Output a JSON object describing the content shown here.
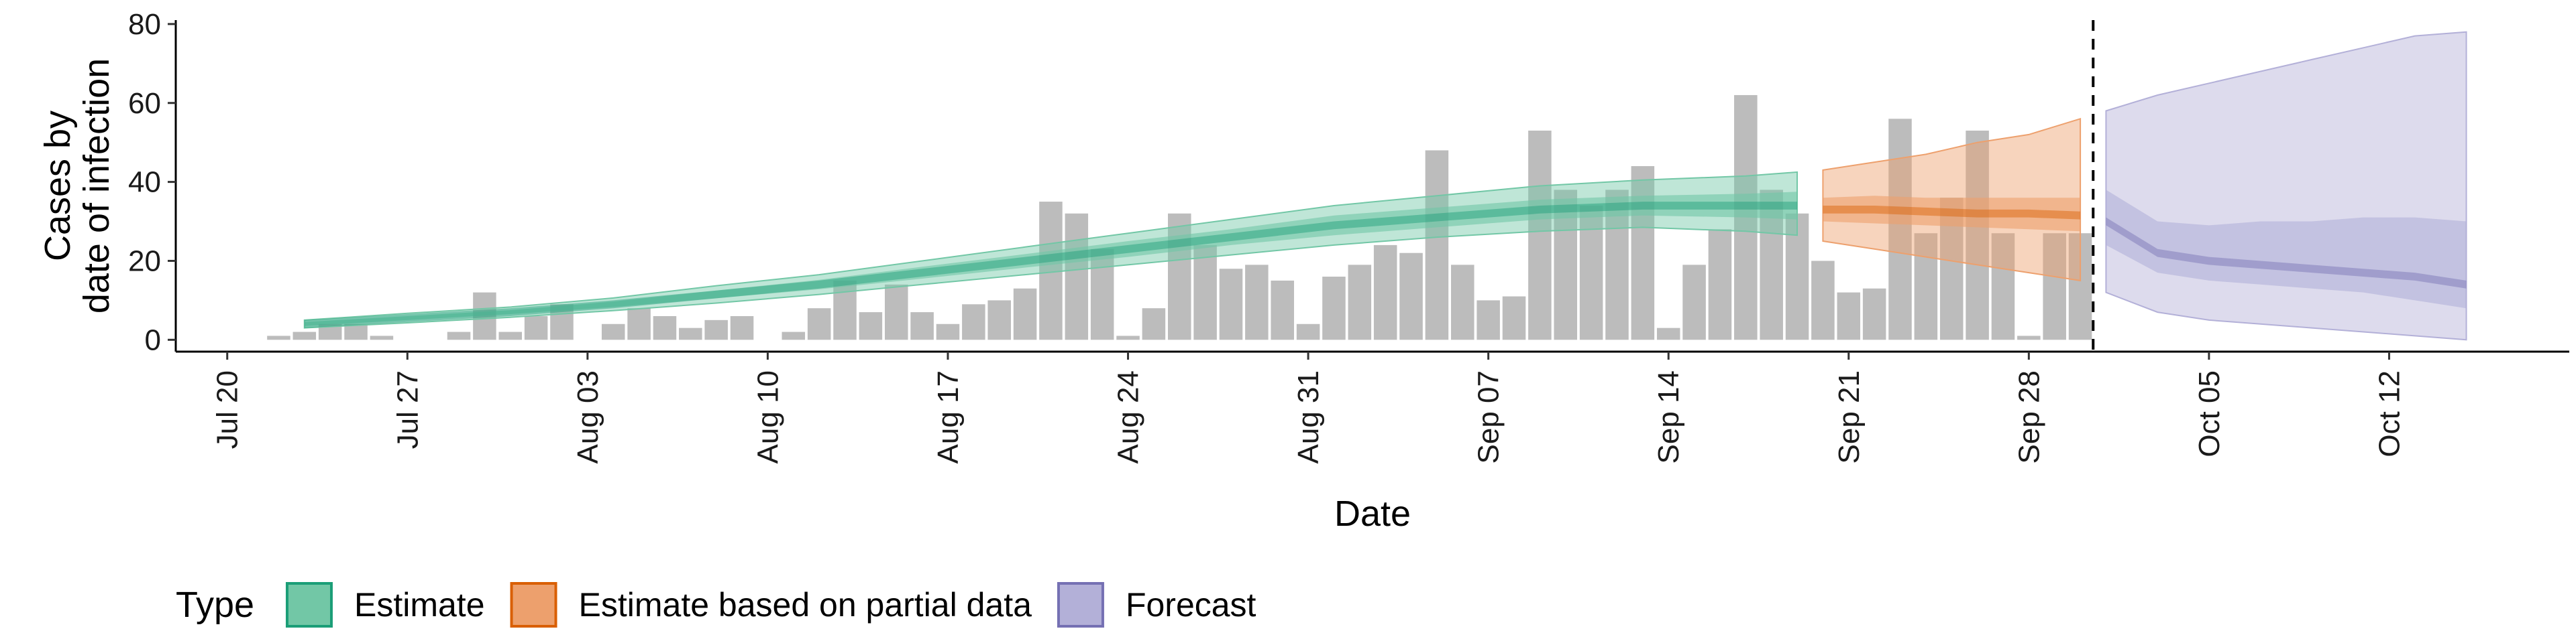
{
  "chart_data": {
    "type": "bar",
    "xlabel": "Date",
    "ylabel_lines": [
      "Cases by",
      "date of infection"
    ],
    "xlim": [
      "2020-07-18",
      "2020-10-19"
    ],
    "ylim": [
      -3,
      81
    ],
    "y_ticks": [
      0,
      20,
      40,
      60,
      80
    ],
    "x_ticks": [
      {
        "date": "2020-07-20",
        "label": "Jul 20"
      },
      {
        "date": "2020-07-27",
        "label": "Jul 27"
      },
      {
        "date": "2020-08-03",
        "label": "Aug 03"
      },
      {
        "date": "2020-08-10",
        "label": "Aug 10"
      },
      {
        "date": "2020-08-17",
        "label": "Aug 17"
      },
      {
        "date": "2020-08-24",
        "label": "Aug 24"
      },
      {
        "date": "2020-08-31",
        "label": "Aug 31"
      },
      {
        "date": "2020-09-07",
        "label": "Sep 07"
      },
      {
        "date": "2020-09-14",
        "label": "Sep 14"
      },
      {
        "date": "2020-09-21",
        "label": "Sep 21"
      },
      {
        "date": "2020-09-28",
        "label": "Sep 28"
      },
      {
        "date": "2020-10-05",
        "label": "Oct 05"
      },
      {
        "date": "2020-10-12",
        "label": "Oct 12"
      }
    ],
    "bars": {
      "color": "#a6a6a6",
      "dates": [
        "2020-07-22",
        "2020-07-23",
        "2020-07-24",
        "2020-07-25",
        "2020-07-26",
        "2020-07-27",
        "2020-07-28",
        "2020-07-29",
        "2020-07-30",
        "2020-07-31",
        "2020-08-01",
        "2020-08-02",
        "2020-08-03",
        "2020-08-04",
        "2020-08-05",
        "2020-08-06",
        "2020-08-07",
        "2020-08-08",
        "2020-08-09",
        "2020-08-10",
        "2020-08-11",
        "2020-08-12",
        "2020-08-13",
        "2020-08-14",
        "2020-08-15",
        "2020-08-16",
        "2020-08-17",
        "2020-08-18",
        "2020-08-19",
        "2020-08-20",
        "2020-08-21",
        "2020-08-22",
        "2020-08-23",
        "2020-08-24",
        "2020-08-25",
        "2020-08-26",
        "2020-08-27",
        "2020-08-28",
        "2020-08-29",
        "2020-08-30",
        "2020-08-31",
        "2020-09-01",
        "2020-09-02",
        "2020-09-03",
        "2020-09-04",
        "2020-09-05",
        "2020-09-06",
        "2020-09-07",
        "2020-09-08",
        "2020-09-09",
        "2020-09-10",
        "2020-09-11",
        "2020-09-12",
        "2020-09-13",
        "2020-09-14",
        "2020-09-15",
        "2020-09-16",
        "2020-09-17",
        "2020-09-18",
        "2020-09-19",
        "2020-09-20",
        "2020-09-21",
        "2020-09-22",
        "2020-09-23",
        "2020-09-24",
        "2020-09-25",
        "2020-09-26",
        "2020-09-27",
        "2020-09-28",
        "2020-09-29",
        "2020-09-30"
      ],
      "values": [
        1,
        2,
        4,
        4,
        1,
        0,
        0,
        2,
        12,
        2,
        6,
        9,
        0,
        4,
        8,
        6,
        3,
        5,
        6,
        0,
        2,
        8,
        15,
        7,
        14,
        7,
        4,
        9,
        10,
        13,
        35,
        32,
        23,
        1,
        8,
        32,
        24,
        18,
        19,
        15,
        4,
        16,
        19,
        24,
        22,
        48,
        19,
        10,
        11,
        53,
        38,
        34,
        38,
        44,
        3,
        19,
        28,
        62,
        38,
        32,
        20,
        12,
        13,
        56,
        27,
        36,
        53,
        27,
        1,
        27,
        27
      ]
    },
    "series": [
      {
        "name": "Estimate",
        "color": "#1b9e77",
        "fill": "#72c7a6",
        "dates": [
          "2020-07-23",
          "2020-07-27",
          "2020-07-31",
          "2020-08-04",
          "2020-08-08",
          "2020-08-12",
          "2020-08-16",
          "2020-08-20",
          "2020-08-24",
          "2020-08-28",
          "2020-09-01",
          "2020-09-05",
          "2020-09-09",
          "2020-09-13",
          "2020-09-17",
          "2020-09-19"
        ],
        "median": [
          4,
          5.5,
          7,
          9,
          11.5,
          14,
          17,
          20,
          23,
          26,
          29,
          31,
          33,
          34,
          34,
          34
        ],
        "inner_lower": [
          3.5,
          5,
          6.5,
          8.3,
          10.5,
          12.8,
          15.5,
          18.3,
          21,
          24,
          26.5,
          28.5,
          30.5,
          31.5,
          31,
          30.5
        ],
        "inner_upper": [
          4.5,
          6,
          7.5,
          9.7,
          12.5,
          15.2,
          18.5,
          21.7,
          25,
          28,
          31.5,
          33.5,
          35.5,
          36.5,
          37,
          37.5
        ],
        "outer_lower": [
          3,
          4.3,
          5.7,
          7.4,
          9.3,
          11.5,
          14,
          16.5,
          19,
          21.5,
          24,
          26,
          27.5,
          28.5,
          27.5,
          26.5
        ],
        "outer_upper": [
          5,
          6.7,
          8.3,
          10.6,
          13.7,
          16.5,
          20,
          23.5,
          27,
          30.5,
          34,
          36.5,
          39,
          40.5,
          41.5,
          42.5
        ]
      },
      {
        "name": "Estimate based on partial data",
        "color": "#d95f02",
        "fill": "#eda06d",
        "dates": [
          "2020-09-20",
          "2020-09-22",
          "2020-09-24",
          "2020-09-26",
          "2020-09-28",
          "2020-09-30"
        ],
        "median": [
          33,
          33,
          32.5,
          32,
          32,
          31.5
        ],
        "inner_lower": [
          30,
          29.5,
          29,
          28.5,
          28,
          27.5
        ],
        "inner_upper": [
          36,
          36.5,
          36,
          36,
          36,
          36
        ],
        "outer_lower": [
          25,
          23,
          21,
          19,
          17,
          15
        ],
        "outer_upper": [
          43,
          45,
          47,
          50,
          52,
          56
        ]
      },
      {
        "name": "Forecast",
        "color": "#7570b3",
        "fill": "#b3b0d8",
        "dates": [
          "2020-10-01",
          "2020-10-03",
          "2020-10-05",
          "2020-10-07",
          "2020-10-09",
          "2020-10-11",
          "2020-10-13",
          "2020-10-15"
        ],
        "median": [
          30,
          22,
          20,
          19,
          18,
          17,
          16,
          14
        ],
        "inner_lower": [
          24,
          17,
          15,
          14,
          13,
          12,
          10,
          8
        ],
        "inner_upper": [
          38,
          30,
          29,
          30,
          30,
          31,
          31,
          30
        ],
        "outer_lower": [
          12,
          7,
          5,
          4,
          3,
          2,
          1,
          0
        ],
        "outer_upper": [
          58,
          62,
          65,
          68,
          71,
          74,
          77,
          78
        ]
      }
    ],
    "vline_date": "2020-09-30",
    "legend": {
      "title": "Type",
      "position": "bottom",
      "items": [
        {
          "label": "Estimate",
          "fill": "#72c7a6",
          "stroke": "#1b9e77"
        },
        {
          "label": "Estimate based on partial data",
          "fill": "#eda06d",
          "stroke": "#d95f02"
        },
        {
          "label": "Forecast",
          "fill": "#b3b0d8",
          "stroke": "#7570b3"
        }
      ]
    }
  }
}
